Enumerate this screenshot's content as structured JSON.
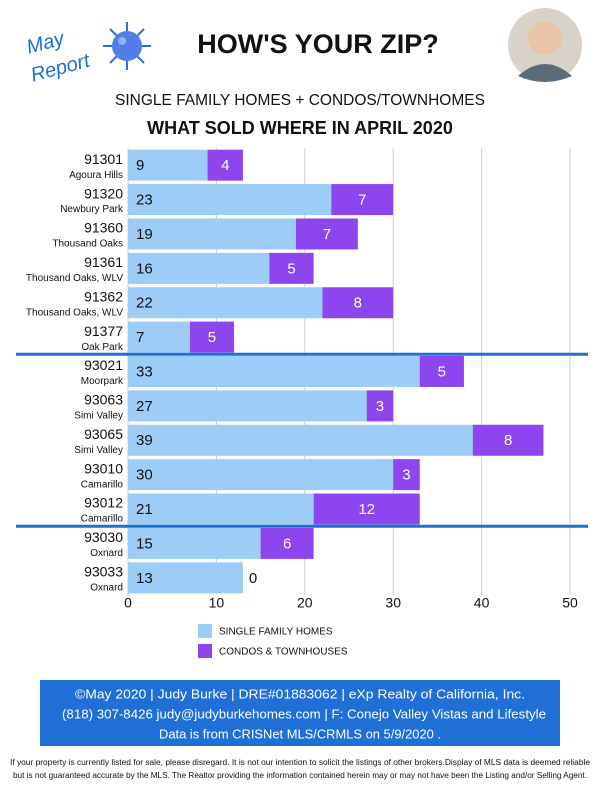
{
  "header": {
    "badge": [
      "May",
      "Report"
    ],
    "headline": "HOW'S YOUR ZIP?"
  },
  "chart_data": {
    "type": "stacked-bar-horizontal",
    "subtitle": "SINGLE FAMILY HOMES + CONDOS/TOWNHOMES",
    "title": "WHAT SOLD WHERE IN APRIL 2020",
    "categories": [
      "91301",
      "91320",
      "91360",
      "91361",
      "91362",
      "91377",
      "93021",
      "93063",
      "93065",
      "93010",
      "93012",
      "93030",
      "93033"
    ],
    "category_areas": [
      "Agoura Hills",
      "Newbury Park",
      "Thousand Oaks",
      "Thousand Oaks, WLV",
      "Thousand Oaks, WLV",
      "Oak Park",
      "Moorpark",
      "Simi Valley",
      "Simi Valley",
      "Camarillo",
      "Camarillo",
      "Oxnard",
      "Oxnard"
    ],
    "series": [
      {
        "name": "SINGLE FAMILY HOMES",
        "color": "#9dcdf6",
        "values": [
          9,
          23,
          19,
          16,
          22,
          7,
          33,
          27,
          39,
          30,
          21,
          15,
          13
        ]
      },
      {
        "name": "CONDOS & TOWNHOUSES",
        "color": "#8d45ee",
        "values": [
          4,
          7,
          7,
          5,
          8,
          5,
          5,
          3,
          8,
          3,
          12,
          6,
          0
        ]
      }
    ],
    "xlim": [
      0,
      50
    ],
    "xticks": [
      0,
      10,
      20,
      30,
      40,
      50
    ],
    "grid": true
  },
  "footer": {
    "lines": [
      "©May 2020  |  Judy Burke  |  DRE#01883062  |  eXp Realty of California, Inc.",
      "(818) 307-8426  judy@judyburkehomes.com | F: Conejo Valley Vistas and Lifestyle",
      "Data is from CRISNet MLS/CRMLS on 5/9/2020 ."
    ],
    "disclaimer": [
      "If your property is currently listed for sale, please disregard. It is not our intention to solicit the listings of other brokers.Display of MLS data is deemed reliable",
      "but is not guaranteed accurate by the MLS. The Realtor providing the information contained herein may or may not have been the Listing and/or Selling Agent."
    ]
  }
}
